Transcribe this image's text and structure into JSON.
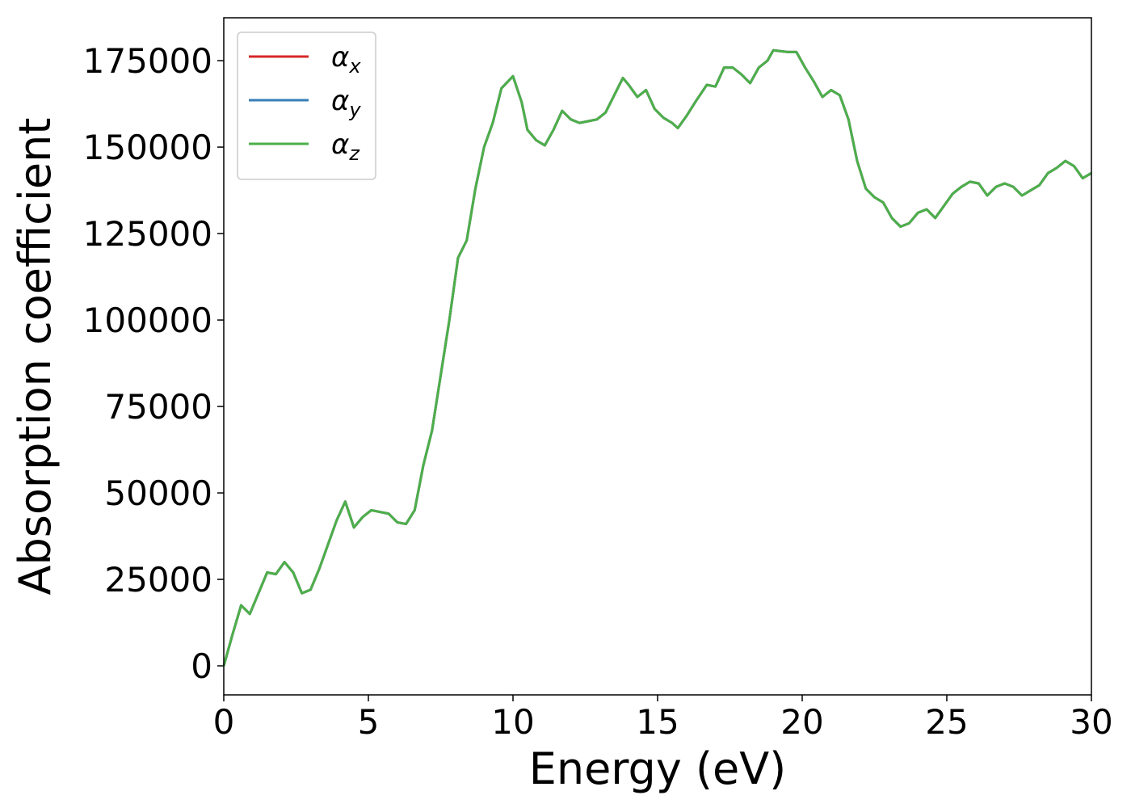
{
  "chart_data": {
    "type": "line",
    "xlabel": "Energy (eV)",
    "ylabel": "Absorption coefficient",
    "xlim": [
      0,
      30
    ],
    "ylim": [
      -8400,
      187400
    ],
    "xticks": [
      0,
      5,
      10,
      15,
      20,
      25,
      30
    ],
    "yticks": [
      0,
      25000,
      50000,
      75000,
      100000,
      125000,
      150000,
      175000
    ],
    "legend": "upper left",
    "grid": false,
    "x": [
      0,
      0.3,
      0.6,
      0.9,
      1.2,
      1.5,
      1.8,
      2.1,
      2.4,
      2.7,
      3.0,
      3.3,
      3.6,
      3.9,
      4.2,
      4.5,
      4.8,
      5.1,
      5.7,
      6.0,
      6.3,
      6.6,
      6.9,
      7.2,
      7.5,
      7.8,
      8.1,
      8.4,
      8.7,
      9.0,
      9.3,
      9.6,
      10.0,
      10.3,
      10.5,
      10.8,
      11.1,
      11.4,
      11.7,
      12.0,
      12.3,
      12.6,
      12.9,
      13.2,
      13.5,
      13.8,
      14.0,
      14.3,
      14.6,
      14.9,
      15.2,
      15.5,
      15.7,
      16.0,
      16.3,
      16.7,
      17.0,
      17.3,
      17.6,
      17.9,
      18.2,
      18.5,
      18.8,
      19.0,
      19.5,
      19.8,
      20.1,
      20.4,
      20.7,
      21.0,
      21.3,
      21.6,
      21.9,
      22.2,
      22.5,
      22.8,
      23.1,
      23.4,
      23.7,
      24.0,
      24.3,
      24.6,
      24.9,
      25.2,
      25.5,
      25.8,
      26.1,
      26.4,
      26.7,
      27.0,
      27.3,
      27.6,
      27.9,
      28.2,
      28.5,
      28.8,
      29.1,
      29.4,
      29.7,
      30.0
    ],
    "series": [
      {
        "name": "αx",
        "color": "#d62728",
        "values": [
          0,
          9000,
          17500,
          15000,
          21000,
          27000,
          26500,
          30000,
          27000,
          21000,
          22000,
          28000,
          35000,
          42000,
          47500,
          40000,
          43000,
          45000,
          44000,
          41500,
          41000,
          45000,
          58000,
          68000,
          84000,
          100000,
          118000,
          123000,
          138000,
          150000,
          157000,
          167000,
          170500,
          163000,
          155000,
          152000,
          150500,
          155000,
          160500,
          158000,
          157000,
          157500,
          158000,
          160000,
          165000,
          170000,
          168000,
          164500,
          166500,
          161000,
          158500,
          157000,
          155500,
          159000,
          163000,
          168000,
          167500,
          173000,
          173000,
          171000,
          168500,
          173000,
          175000,
          178000,
          177500,
          177500,
          173000,
          169000,
          164500,
          166500,
          165000,
          158000,
          146000,
          138000,
          135500,
          134000,
          129500,
          127000,
          128000,
          131000,
          132000,
          129500,
          133000,
          136500,
          138500,
          140000,
          139500,
          136000,
          138500,
          139500,
          138500,
          136000,
          137500,
          139000,
          142500,
          144000,
          146000,
          144500,
          141000,
          142500
        ]
      },
      {
        "name": "αy",
        "color": "#377eb8",
        "values": [
          0,
          9000,
          17500,
          15000,
          21000,
          27000,
          26500,
          30000,
          27000,
          21000,
          22000,
          28000,
          35000,
          42000,
          47500,
          40000,
          43000,
          45000,
          44000,
          41500,
          41000,
          45000,
          58000,
          68000,
          84000,
          100000,
          118000,
          123000,
          138000,
          150000,
          157000,
          167000,
          170500,
          163000,
          155000,
          152000,
          150500,
          155000,
          160500,
          158000,
          157000,
          157500,
          158000,
          160000,
          165000,
          170000,
          168000,
          164500,
          166500,
          161000,
          158500,
          157000,
          155500,
          159000,
          163000,
          168000,
          167500,
          173000,
          173000,
          171000,
          168500,
          173000,
          175000,
          178000,
          177500,
          177500,
          173000,
          169000,
          164500,
          166500,
          165000,
          158000,
          146000,
          138000,
          135500,
          134000,
          129500,
          127000,
          128000,
          131000,
          132000,
          129500,
          133000,
          136500,
          138500,
          140000,
          139500,
          136000,
          138500,
          139500,
          138500,
          136000,
          137500,
          139000,
          142500,
          144000,
          146000,
          144500,
          141000,
          142500
        ]
      },
      {
        "name": "αz",
        "color": "#4daf4a",
        "values": [
          0,
          9000,
          17500,
          15000,
          21000,
          27000,
          26500,
          30000,
          27000,
          21000,
          22000,
          28000,
          35000,
          42000,
          47500,
          40000,
          43000,
          45000,
          44000,
          41500,
          41000,
          45000,
          58000,
          68000,
          84000,
          100000,
          118000,
          123000,
          138000,
          150000,
          157000,
          167000,
          170500,
          163000,
          155000,
          152000,
          150500,
          155000,
          160500,
          158000,
          157000,
          157500,
          158000,
          160000,
          165000,
          170000,
          168000,
          164500,
          166500,
          161000,
          158500,
          157000,
          155500,
          159000,
          163000,
          168000,
          167500,
          173000,
          173000,
          171000,
          168500,
          173000,
          175000,
          178000,
          177500,
          177500,
          173000,
          169000,
          164500,
          166500,
          165000,
          158000,
          146000,
          138000,
          135500,
          134000,
          129500,
          127000,
          128000,
          131000,
          132000,
          129500,
          133000,
          136500,
          138500,
          140000,
          139500,
          136000,
          138500,
          139500,
          138500,
          136000,
          137500,
          139000,
          142500,
          144000,
          146000,
          144500,
          141000,
          142500
        ]
      }
    ]
  }
}
